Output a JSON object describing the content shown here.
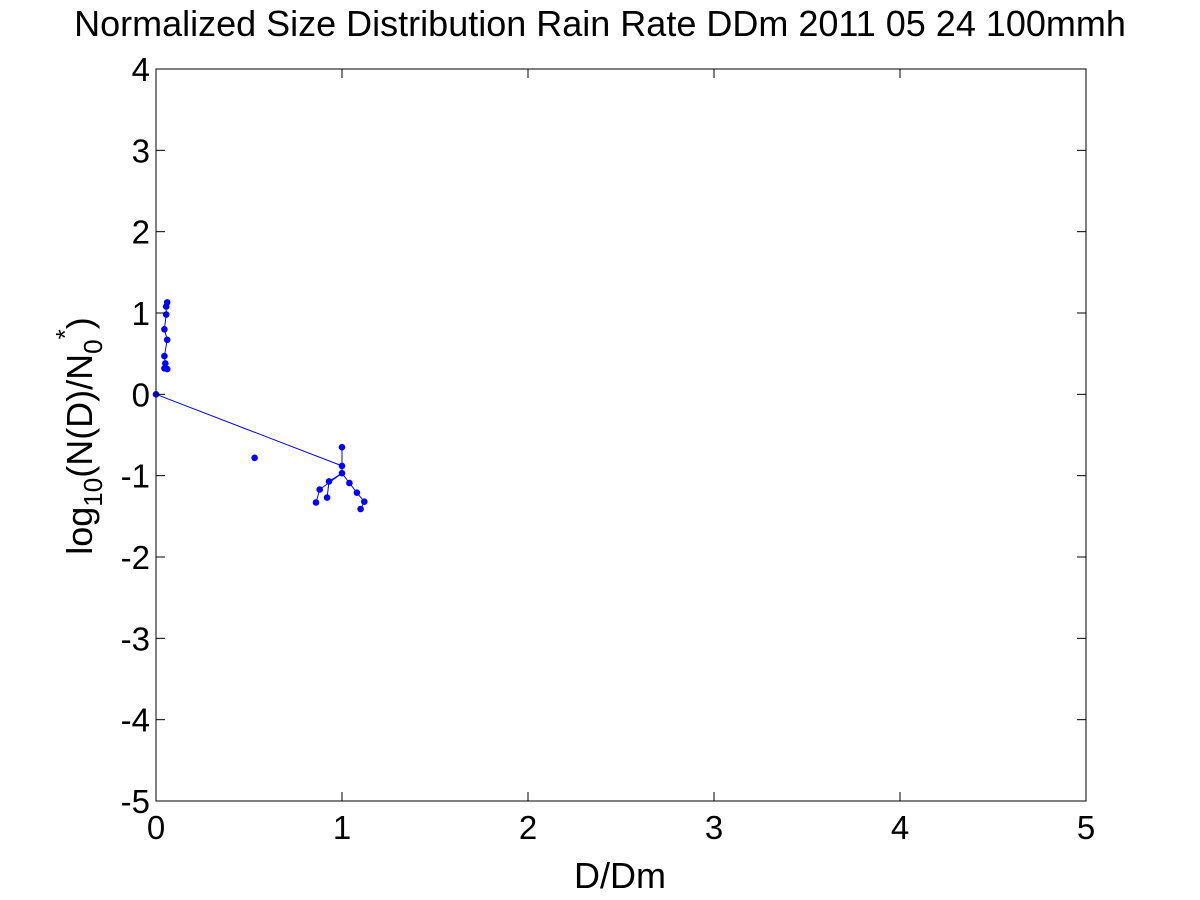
{
  "chart_data": {
    "type": "scatter",
    "title": "Normalized Size Distribution Rain Rate DDm 2011 05 24 100mmh",
    "xlabel": "D/Dm",
    "ylabel": {
      "prefix": "log",
      "sub1": "10",
      "mid": "(N(D)/N",
      "sub2": "0",
      "sup": "*",
      "suffix": ")"
    },
    "xlim": [
      0,
      5
    ],
    "ylim": [
      -5,
      4
    ],
    "xticks": [
      0,
      1,
      2,
      3,
      4,
      5
    ],
    "yticks": [
      4,
      3,
      2,
      1,
      0,
      -1,
      -2,
      -3,
      -4,
      -5
    ],
    "grid": false,
    "marker_color": "#0000ff",
    "series": [
      {
        "points": [
          [
            0.06,
            1.13
          ],
          [
            0.055,
            1.08
          ],
          [
            0.055,
            0.98
          ],
          [
            0.045,
            0.8
          ],
          [
            0.06,
            0.67
          ],
          [
            0.045,
            0.47
          ],
          [
            0.05,
            0.38
          ],
          [
            0.045,
            0.32
          ],
          [
            0.06,
            0.31
          ],
          [
            0.0,
            0.0
          ],
          [
            0.53,
            -0.78
          ],
          [
            1.0,
            -0.65
          ],
          [
            1.0,
            -0.88
          ],
          [
            1.0,
            -0.97
          ],
          [
            0.93,
            -1.07
          ],
          [
            1.04,
            -1.09
          ],
          [
            0.88,
            -1.17
          ],
          [
            1.08,
            -1.21
          ],
          [
            0.92,
            -1.27
          ],
          [
            0.86,
            -1.33
          ],
          [
            1.12,
            -1.32
          ],
          [
            1.1,
            -1.41
          ]
        ],
        "lines": [
          [
            [
              0.06,
              1.13
            ],
            [
              0.055,
              1.08
            ],
            [
              0.055,
              0.98
            ],
            [
              0.045,
              0.8
            ],
            [
              0.06,
              0.67
            ],
            [
              0.045,
              0.47
            ],
            [
              0.05,
              0.38
            ],
            [
              0.045,
              0.32
            ],
            [
              0.06,
              0.31
            ]
          ],
          [
            [
              0.0,
              0.0
            ],
            [
              1.0,
              -0.88
            ]
          ],
          [
            [
              1.0,
              -0.65
            ],
            [
              1.0,
              -0.88
            ],
            [
              1.0,
              -0.97
            ]
          ],
          [
            [
              1.0,
              -0.97
            ],
            [
              0.93,
              -1.07
            ],
            [
              0.92,
              -1.27
            ]
          ],
          [
            [
              1.0,
              -0.97
            ],
            [
              0.88,
              -1.17
            ],
            [
              0.86,
              -1.33
            ]
          ],
          [
            [
              1.0,
              -0.97
            ],
            [
              1.04,
              -1.09
            ],
            [
              1.08,
              -1.21
            ],
            [
              1.12,
              -1.32
            ],
            [
              1.1,
              -1.41
            ]
          ]
        ]
      }
    ]
  }
}
